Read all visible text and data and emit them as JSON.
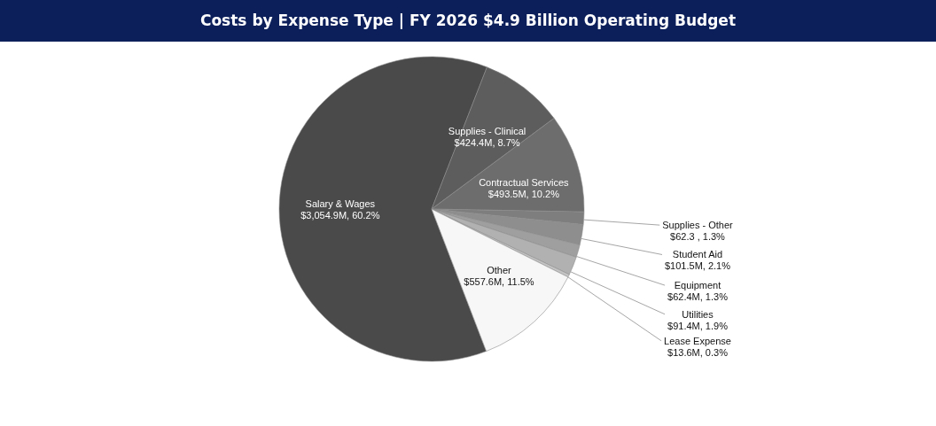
{
  "chart_data": {
    "type": "pie",
    "title": "Costs by Expense Type | FY 2026 $4.9 Billion Operating Budget",
    "categories": [
      "Salary & Wages",
      "Supplies - Clinical",
      "Contractual Services",
      "Supplies - Other",
      "Student Aid",
      "Equipment",
      "Utilities",
      "Lease Expense",
      "Other"
    ],
    "values": [
      60.2,
      8.7,
      10.2,
      1.3,
      2.1,
      1.3,
      1.9,
      0.3,
      11.5
    ],
    "colors": [
      "#4a4a4a",
      "#5d5d5d",
      "#6d6d6d",
      "#7e7e7e",
      "#8e8e8e",
      "#9f9f9f",
      "#b1b1b1",
      "#c4c4c4",
      "#f7f7f7"
    ],
    "value_labels": [
      "$3,054.9M, 60.2%",
      "$424.4M, 8.7%",
      "$493.5M, 10.2%",
      "$62.3 , 1.3%",
      "$101.5M, 2.1%",
      "$62.4M, 1.3%",
      "$91.4M, 1.9%",
      "$13.6M, 0.3%",
      "$557.6M, 11.5%"
    ]
  }
}
